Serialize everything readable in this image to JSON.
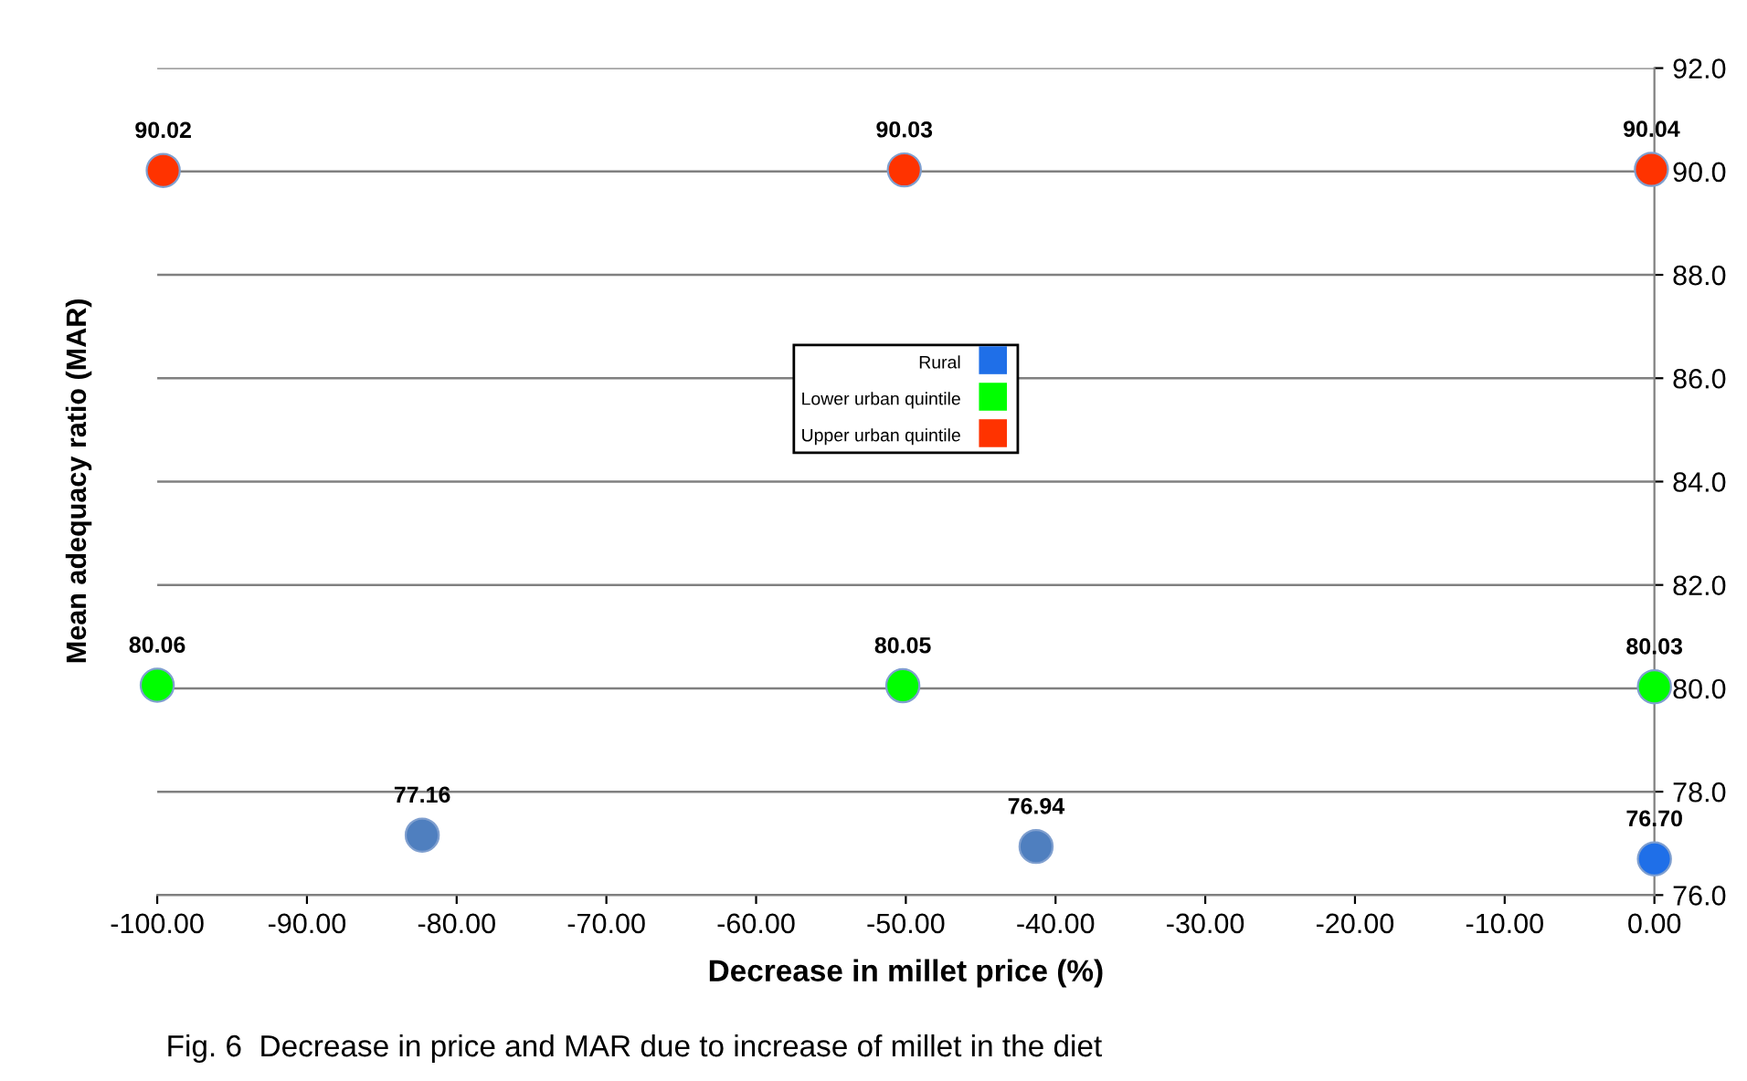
{
  "chart_data": {
    "type": "scatter",
    "xlabel": "Decrease in millet price (%)",
    "ylabel": "Mean adequacy ratio (MAR)",
    "annotations": [
      "Fig. 6  Decrease in price and MAR due to increase of millet in the diet"
    ],
    "series": [
      {
        "name": "Rural",
        "color": "#1f6fe8",
        "colors": [
          "#4f7fbf",
          "#4f7fbf",
          "#1f6fe8"
        ],
        "x": [
          -82.3,
          -41.3,
          0
        ],
        "values": [
          77.16,
          76.94,
          76.7
        ],
        "value_labels": [
          "77.16",
          "76.94",
          "76.70"
        ]
      },
      {
        "name": "Lower urban quintile",
        "color": "#00ff00",
        "x": [
          -100,
          -50.2,
          0
        ],
        "values": [
          80.06,
          80.05,
          80.03
        ],
        "value_labels": [
          "80.06",
          "80.05",
          "80.03"
        ]
      },
      {
        "name": "Upper urban quintile",
        "color": "#ff3300",
        "x": [
          -99.6,
          -50.1,
          -0.2
        ],
        "values": [
          90.02,
          90.03,
          90.04
        ],
        "value_labels": [
          "90.02",
          "90.03",
          "90.04"
        ]
      }
    ],
    "xlim": [
      -100,
      0
    ],
    "ylim": [
      76,
      92
    ],
    "xticks": [
      {
        "value": -100,
        "label": "-100.00"
      },
      {
        "value": -90,
        "label": "-90.00"
      },
      {
        "value": -80,
        "label": "-80.00"
      },
      {
        "value": -70,
        "label": "-70.00"
      },
      {
        "value": -60,
        "label": "-60.00"
      },
      {
        "value": -50,
        "label": "-50.00"
      },
      {
        "value": -40,
        "label": "-40.00"
      },
      {
        "value": -30,
        "label": "-30.00"
      },
      {
        "value": -20,
        "label": "-20.00"
      },
      {
        "value": -10,
        "label": "-10.00"
      },
      {
        "value": 0,
        "label": "0.00"
      }
    ],
    "yticks": [
      {
        "value": 76,
        "label": "76.0"
      },
      {
        "value": 78,
        "label": "78.0"
      },
      {
        "value": 80,
        "label": "80.0"
      },
      {
        "value": 82,
        "label": "82.0"
      },
      {
        "value": 84,
        "label": "84.0"
      },
      {
        "value": 86,
        "label": "86.0"
      },
      {
        "value": 88,
        "label": "88.0"
      },
      {
        "value": 90,
        "label": "90.0"
      },
      {
        "value": 92,
        "label": "92.0"
      }
    ],
    "grid": "y",
    "legend": "center",
    "marker": "circle"
  }
}
